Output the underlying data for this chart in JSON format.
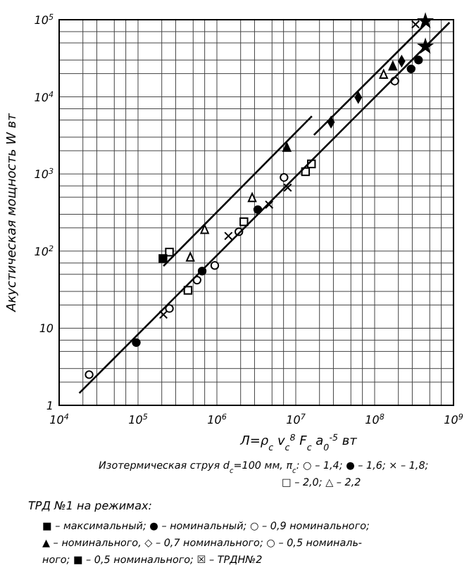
{
  "chart_data": {
    "type": "scatter",
    "xlabel": "Л=ρ$_{c}$ v$_{c}$$^{8}$ F$_{c}$ a$_{0}$$^{-5}$   вт",
    "ylabel": "Акустическая мощность  W  вт",
    "log": "xy",
    "grid": true,
    "xlim": [
      10000,
      1000000000
    ],
    "ylim": [
      1,
      100000
    ],
    "xticks": [
      {
        "value": 10000,
        "label": "10$^{4}$"
      },
      {
        "value": 100000,
        "label": "10$^{5}$"
      },
      {
        "value": 1000000,
        "label": "10$^{6}$"
      },
      {
        "value": 10000000,
        "label": "10$^{7}$"
      },
      {
        "value": 100000000,
        "label": "10$^{8}$"
      },
      {
        "value": 1000000000,
        "label": "10$^{9}$"
      }
    ],
    "yticks": [
      1,
      10,
      {
        "value": 100,
        "label": "10$^{2}$"
      },
      {
        "value": 1000,
        "label": "10$^{3}$"
      },
      {
        "value": 10000,
        "label": "10$^{4}$"
      },
      {
        "value": 100000,
        "label": "10$^{5}$"
      }
    ],
    "series": [
      {
        "marker": "circle",
        "color": "#ffffff",
        "x": [
          24000,
          250000,
          560000,
          940000,
          1900000,
          7100000,
          180000000
        ],
        "values": [
          2.5,
          18,
          42,
          65,
          178,
          900,
          16000
        ]
      },
      {
        "marker": "circle",
        "color": "#000000",
        "x": [
          95000,
          650000,
          3300000,
          290000000,
          360000000
        ],
        "values": [
          6.5,
          55,
          345,
          23000,
          30000
        ]
      },
      {
        "marker": "cross",
        "color": "#000000",
        "x": [
          210000,
          1400000,
          4600000,
          7900000,
          330000000
        ],
        "values": [
          15,
          157,
          400,
          665,
          87000
        ]
      },
      {
        "marker": "square",
        "color": "#ffffff",
        "x": [
          250000,
          430000,
          2200000,
          13300000,
          15800000
        ],
        "values": [
          97,
          31,
          240,
          1070,
          1350
        ]
      },
      {
        "marker": "square",
        "color": "#000000",
        "x": [
          207000
        ],
        "values": [
          80
        ]
      },
      {
        "marker": "triangle",
        "color": "#ffffff",
        "x": [
          460000,
          700000,
          2800000,
          130000000
        ],
        "values": [
          83,
          190,
          490,
          19500
        ]
      },
      {
        "marker": "triangle",
        "color": "#000000",
        "x": [
          7700000,
          170000000
        ],
        "values": [
          2200,
          25000
        ]
      },
      {
        "marker": "diamond",
        "color": "#000000",
        "x": [
          28000000,
          62000000,
          220000000
        ],
        "values": [
          4700,
          9800,
          29000
        ]
      },
      {
        "marker": "star",
        "color": "#000000",
        "x": [
          440000000,
          440000000
        ],
        "values": [
          45000,
          96000
        ]
      },
      {
        "type": "line",
        "color": "#000000",
        "marker": "none",
        "x": [
          18000,
          890000000
        ],
        "values": [
          1.44,
          92000
        ]
      },
      {
        "type": "line",
        "color": "#000000",
        "marker": "none",
        "x": [
          210000,
          16000000
        ],
        "values": [
          64,
          5600
        ]
      },
      {
        "type": "line",
        "color": "#000000",
        "marker": "none",
        "x": [
          17000000,
          500000000
        ],
        "values": [
          3200,
          100000
        ]
      }
    ],
    "annotations": [
      "Изотермическая струя  d$_{c}$=100 мм, π$_{c}$: ○ – 1,4; ● – 1,6; × – 1,8;",
      "□ – 2,0; △ – 2,2",
      "ТРД №1 на режимах:",
      "■ – максимальный; ● – номинальный; ○ – 0,9 номинального;",
      "▲ – номинального, ◇ – 0,7 номинального; ○ – 0,5 номиналь-",
      "ного; ■ – 0,5 номинального; ☒ – ТРДН№2"
    ]
  }
}
